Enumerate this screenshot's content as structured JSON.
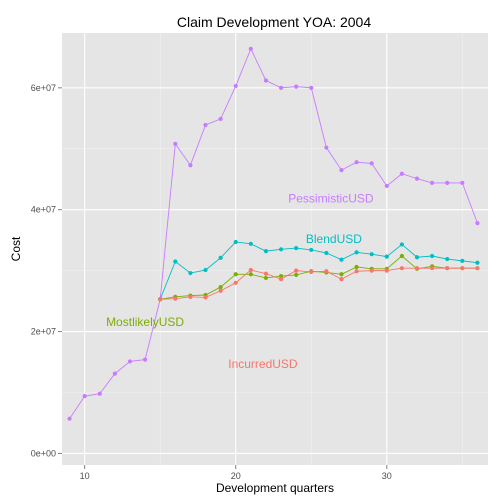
{
  "chart_data": {
    "type": "line",
    "title": "Claim Development  YOA: 2004",
    "xlabel": "Development quarters",
    "ylabel": "Cost",
    "xlim": [
      8.5,
      36.7
    ],
    "ylim": [
      -1900000,
      69000000
    ],
    "x_ticks": [
      10,
      20,
      30
    ],
    "x_tick_labels": [
      "10",
      "20",
      "30"
    ],
    "y_ticks": [
      0,
      20000000,
      40000000,
      60000000
    ],
    "y_tick_labels": [
      "0e+00",
      "2e+07",
      "4e+07",
      "6e+07"
    ],
    "grid": true,
    "legend": "direct-labels",
    "series": [
      {
        "name": "PessimisticUSD",
        "color": "#C77CFF",
        "label_at": [
          26.3,
          41800000
        ],
        "x": [
          9,
          10,
          11,
          12,
          13,
          14,
          15,
          16,
          17,
          18,
          19,
          20,
          21,
          22,
          23,
          24,
          25,
          26,
          27,
          28,
          29,
          30,
          31,
          32,
          33,
          34,
          35,
          36
        ],
        "values": [
          5700000,
          9400000,
          9800000,
          13100000,
          15100000,
          15400000,
          25300000,
          50800000,
          47300000,
          53900000,
          54900000,
          60300000,
          66400000,
          61200000,
          60000000,
          60200000,
          60000000,
          50200000,
          46500000,
          47800000,
          47600000,
          43900000,
          45900000,
          45100000,
          44400000,
          44400000,
          44400000,
          37800000
        ]
      },
      {
        "name": "BlendUSD",
        "color": "#00BFC4",
        "label_at": [
          26.5,
          35200000
        ],
        "x": [
          15,
          16,
          17,
          18,
          19,
          20,
          21,
          22,
          23,
          24,
          25,
          26,
          27,
          28,
          29,
          30,
          31,
          32,
          33,
          34,
          35,
          36
        ],
        "values": [
          25300000,
          31500000,
          29600000,
          30100000,
          32100000,
          34700000,
          34400000,
          33200000,
          33500000,
          33700000,
          33400000,
          32900000,
          31800000,
          33000000,
          32700000,
          32300000,
          34300000,
          32200000,
          32400000,
          31900000,
          31600000,
          31300000
        ]
      },
      {
        "name": "MostlikelyUSD",
        "color": "#7CAE00",
        "label_at": [
          14.0,
          21600000
        ],
        "x": [
          15,
          16,
          17,
          18,
          19,
          20,
          21,
          22,
          23,
          24,
          25,
          26,
          27,
          28,
          29,
          30,
          31,
          32,
          33,
          34,
          35,
          36
        ],
        "values": [
          25300000,
          25700000,
          25900000,
          26000000,
          27300000,
          29400000,
          29400000,
          28800000,
          29100000,
          29300000,
          29900000,
          29700000,
          29400000,
          30600000,
          30300000,
          30300000,
          32400000,
          30300000,
          30700000,
          30400000,
          30400000,
          30400000
        ]
      },
      {
        "name": "IncurredUSD",
        "color": "#F8766D",
        "label_at": [
          21.8,
          14700000
        ],
        "x": [
          15,
          16,
          17,
          18,
          19,
          20,
          21,
          22,
          23,
          24,
          25,
          26,
          27,
          28,
          29,
          30,
          31,
          32,
          33,
          34,
          35,
          36
        ],
        "values": [
          25300000,
          25400000,
          25700000,
          25600000,
          26700000,
          28000000,
          30100000,
          29500000,
          28600000,
          30000000,
          29800000,
          29900000,
          28600000,
          29900000,
          30000000,
          30000000,
          30400000,
          30400000,
          30400000,
          30400000,
          30400000,
          30400000
        ]
      }
    ]
  }
}
